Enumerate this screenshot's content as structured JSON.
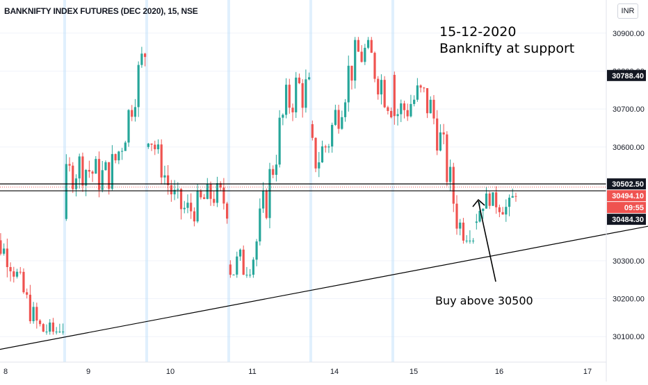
{
  "header": {
    "title": "BANKNIFTY INDEX FUTURES (DEC 2020), 15, NSE",
    "currency": "INR"
  },
  "annotations": {
    "date": "15-12-2020",
    "status": "Banknifty at support",
    "action": "Buy above 30500"
  },
  "colors": {
    "up": "#26a69a",
    "down": "#ef5350",
    "session": "#bbdefb",
    "grid": "#f0f3fa",
    "axis_text": "#131722",
    "line": "#000000",
    "dotted": "#ef5350"
  },
  "chart_data": {
    "type": "candlestick",
    "timeframe": "15",
    "x_tick_labels": [
      "8",
      "9",
      "10",
      "11",
      "14",
      "15",
      "16",
      "17"
    ],
    "y_tick_labels": [
      "30900.00",
      "30800.00",
      "30700.00",
      "30600.00",
      "30300.00",
      "30200.00",
      "30100.00"
    ],
    "y_ticks": [
      30900,
      30800,
      30700,
      30600,
      30300,
      30200,
      30100
    ],
    "ylim": [
      30040,
      30960
    ],
    "price_labels": [
      {
        "name": "last-price-high",
        "value": 30788.4,
        "text": "30788.40",
        "style": "dark"
      },
      {
        "name": "resistance-line",
        "value": 30502.5,
        "text": "30502.50",
        "style": "dark"
      },
      {
        "name": "current-price",
        "value": 30494.1,
        "text": "30494.10",
        "style": "red"
      },
      {
        "name": "countdown",
        "value": null,
        "text": "09:55",
        "style": "red"
      },
      {
        "name": "support-line",
        "value": 30484.3,
        "text": "30484.30",
        "style": "dark"
      }
    ],
    "horizontal_lines": [
      30502.5,
      30484.3
    ],
    "dotted_line": 30494.1,
    "trendline": {
      "start": {
        "index": -3,
        "price": 30065
      },
      "end": {
        "index": 213,
        "price": 30420
      }
    },
    "sessions": [
      {
        "label": "8",
        "start": -7,
        "count": 25,
        "open": 30330,
        "close": 30120,
        "low": 30105,
        "high": 30425
      },
      {
        "label": "9",
        "start": 18,
        "count": 25,
        "open": 30410,
        "close": 30780,
        "low": 30405,
        "high": 30880
      },
      {
        "label": "10",
        "start": 43,
        "count": 25,
        "open": 30600,
        "close": 30385,
        "low": 30260,
        "high": 30620
      },
      {
        "label": "11",
        "start": 68,
        "count": 25,
        "open": 30290,
        "close": 30720,
        "low": 30255,
        "high": 30860
      },
      {
        "label": "14",
        "start": 93,
        "count": 25,
        "open": 30660,
        "close": 30800,
        "low": 30340,
        "high": 30890
      },
      {
        "label": "15",
        "start": 118,
        "count": 25,
        "open": 30790,
        "close": 30400,
        "low": 30345,
        "high": 30880
      },
      {
        "label": "15-tail",
        "start": 143,
        "count": 13,
        "open": 30400,
        "close": 30494,
        "low": 30350,
        "high": 30535
      }
    ]
  }
}
